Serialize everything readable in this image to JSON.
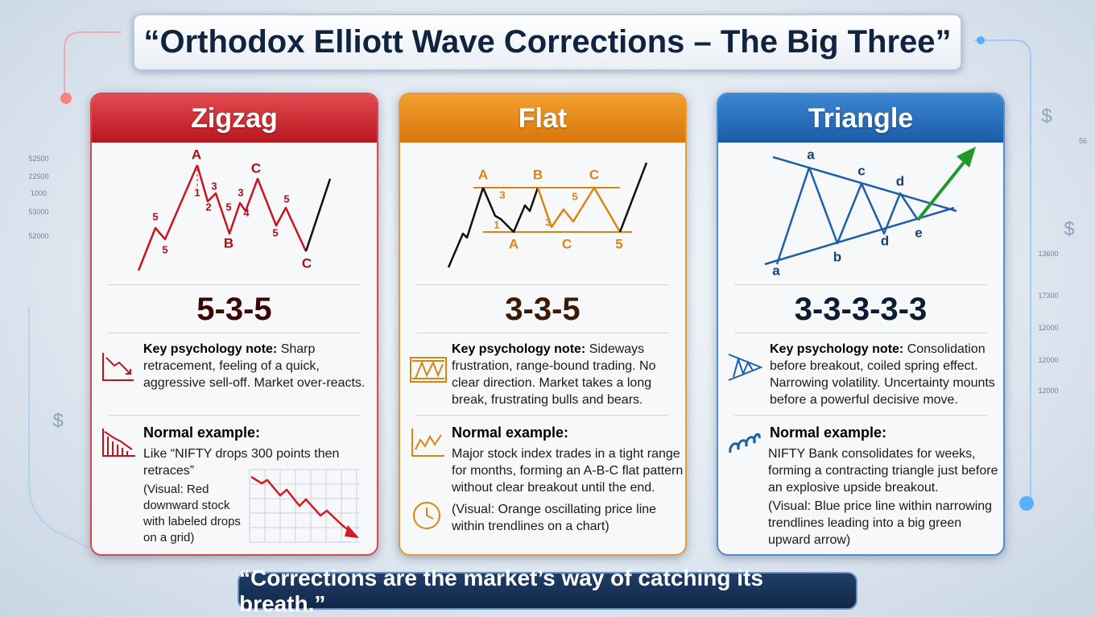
{
  "title": "“Orthodox Elliott Wave Corrections – The Big Three”",
  "panels": [
    {
      "title": "Zigzag",
      "wave_labels": [
        "A",
        "1",
        "3",
        "2",
        "5",
        "5",
        "5",
        "3",
        "4",
        "C",
        "5",
        "5",
        "B",
        "C"
      ],
      "pattern": "5-3-5",
      "psychology": {
        "label": "Key psychology note:",
        "text": "Sharp retracement, feeling of a quick, aggressive sell-off. Market over-reacts."
      },
      "example": {
        "label": "Normal example:",
        "text": "Like “NIFTY drops 300 points then retraces”",
        "visual": "(Visual: Red downward stock with labeled drops on a grid)"
      }
    },
    {
      "title": "Flat",
      "wave_labels": [
        "A",
        "B",
        "C",
        "3",
        "1",
        "3",
        "5",
        "A",
        "C",
        "5"
      ],
      "pattern": "3-3-5",
      "psychology": {
        "label": "Key psychology note:",
        "text": "Sideways frustration, range-bound trading. No clear direction. Market takes a long break, frustrating bulls and bears."
      },
      "example": {
        "label": "Normal example:",
        "text": "Major stock index trades in a tight range for months, forming an A-B-C flat pattern without clear breakout until the end.",
        "visual": "(Visual: Orange oscillating price line within trendlines on a chart)"
      }
    },
    {
      "title": "Triangle",
      "wave_labels": [
        "a",
        "c",
        "d",
        "a",
        "b",
        "d",
        "e"
      ],
      "pattern": "3-3-3-3-3",
      "psychology": {
        "label": "Key psychology note:",
        "text": "Consolidation before breakout, coiled spring effect. Narrowing volatility. Uncertainty mounts before a powerful decisive move."
      },
      "example": {
        "label": "Normal example:",
        "text": "NIFTY Bank consolidates for weeks, forming a contracting triangle just before an explosive upside breakout.",
        "visual": "(Visual: Blue price line within narrowing trendlines leading into a big green upward arrow)"
      }
    }
  ],
  "footer": "“Corrections are the market’s way of catching its breath.”",
  "background_labels": [
    "52500",
    "22500",
    "1000",
    "53000",
    "52000",
    "56",
    "13600",
    "17300",
    "12000",
    "12000",
    "12000",
    "$",
    "$",
    "$"
  ]
}
